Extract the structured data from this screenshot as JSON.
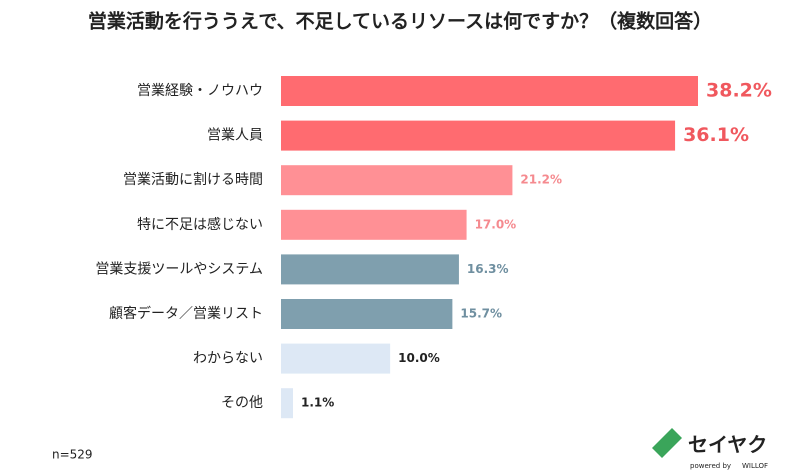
{
  "chart_data": {
    "type": "bar",
    "orientation": "horizontal",
    "title": "営業活動を行ううえで、不足しているリソースは何ですか？（複数回答）",
    "categories": [
      "営業経験・ノウハウ",
      "営業人員",
      "営業活動に割ける時間",
      "特に不足は感じない",
      "営業支援ツールやシステム",
      "顧客データ／営業リスト",
      "わからない",
      "その他"
    ],
    "values": [
      38.2,
      36.1,
      21.2,
      17.0,
      16.3,
      15.7,
      10.0,
      1.1
    ],
    "value_labels": [
      "38.2%",
      "36.1%",
      "21.2%",
      "17.0%",
      "16.3%",
      "15.7%",
      "10.0%",
      "1.1%"
    ],
    "colors": [
      "#ff6b70",
      "#ff6b70",
      "#ff9095",
      "#ff9095",
      "#7f9fae",
      "#7f9fae",
      "#dde8f5",
      "#dde8f5"
    ],
    "value_label_colors": [
      "#f0585e",
      "#f0585e",
      "#f58a8f",
      "#f58a8f",
      "#6f8fa0",
      "#6f8fa0",
      "#222222",
      "#222222"
    ],
    "note": "n=529"
  },
  "logo": {
    "name": "セイヤク",
    "powered_by": "powered by",
    "brand": "WILLOF"
  }
}
